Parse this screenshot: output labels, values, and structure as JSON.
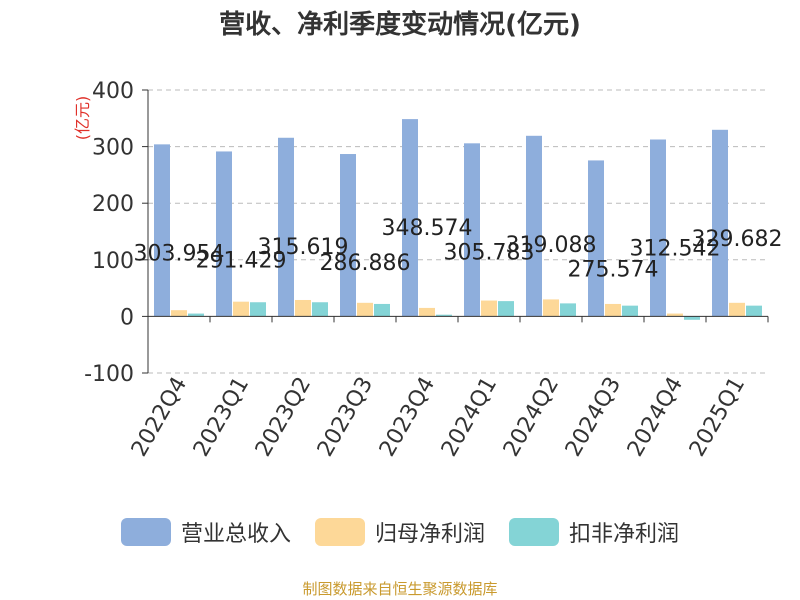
{
  "chart_data": {
    "type": "bar",
    "title": "营收、净利季度变动情况(亿元)",
    "ylabel": "(亿元)",
    "xlabel": "",
    "ylim": [
      -100,
      400
    ],
    "yticks": [
      -100,
      0,
      100,
      200,
      300,
      400
    ],
    "grid": true,
    "legend_position": "bottom",
    "categories": [
      "2022Q4",
      "2023Q1",
      "2023Q2",
      "2023Q3",
      "2023Q4",
      "2024Q1",
      "2024Q2",
      "2024Q3",
      "2024Q4",
      "2025Q1"
    ],
    "series": [
      {
        "name": "营业总收入",
        "color": "#8eaedc",
        "values": [
          303.954,
          291.429,
          315.619,
          286.886,
          348.574,
          305.783,
          319.088,
          275.574,
          312.542,
          329.682
        ],
        "labels": [
          "303.954",
          "291.429",
          "315.619",
          "286.886",
          "348.574",
          "305.783",
          "319.088",
          "275.574",
          "312.542",
          "329.682"
        ]
      },
      {
        "name": "归母净利润",
        "color": "#fdd898",
        "values": [
          11,
          26,
          29,
          24,
          15,
          28,
          30,
          22,
          5,
          24
        ]
      },
      {
        "name": "扣非净利润",
        "color": "#84d4d6",
        "values": [
          5,
          25,
          25,
          22,
          3,
          27,
          23,
          19,
          -6,
          19
        ]
      }
    ]
  },
  "source": "制图数据来自恒生聚源数据库"
}
